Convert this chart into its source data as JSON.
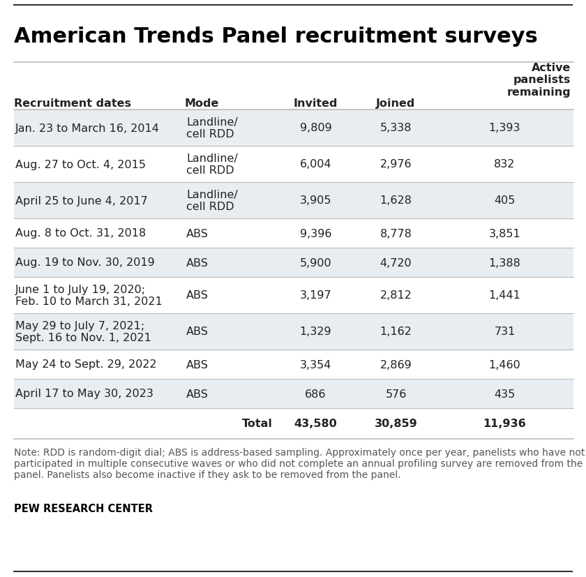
{
  "title": "American Trends Panel recruitment surveys",
  "columns": [
    "Recruitment dates",
    "Mode",
    "Invited",
    "Joined",
    "Active\npanelists\nremaining"
  ],
  "col_aligns": [
    "left",
    "left",
    "center",
    "center",
    "center"
  ],
  "col_header_aligns": [
    "left",
    "left",
    "center",
    "center",
    "right"
  ],
  "rows": [
    [
      "Jan. 23 to March 16, 2014",
      "Landline/\ncell RDD",
      "9,809",
      "5,338",
      "1,393"
    ],
    [
      "Aug. 27 to Oct. 4, 2015",
      "Landline/\ncell RDD",
      "6,004",
      "2,976",
      "832"
    ],
    [
      "April 25 to June 4, 2017",
      "Landline/\ncell RDD",
      "3,905",
      "1,628",
      "405"
    ],
    [
      "Aug. 8 to Oct. 31, 2018",
      "ABS",
      "9,396",
      "8,778",
      "3,851"
    ],
    [
      "Aug. 19 to Nov. 30, 2019",
      "ABS",
      "5,900",
      "4,720",
      "1,388"
    ],
    [
      "June 1 to July 19, 2020;\nFeb. 10 to March 31, 2021",
      "ABS",
      "3,197",
      "2,812",
      "1,441"
    ],
    [
      "May 29 to July 7, 2021;\nSept. 16 to Nov. 1, 2021",
      "ABS",
      "1,329",
      "1,162",
      "731"
    ],
    [
      "May 24 to Sept. 29, 2022",
      "ABS",
      "3,354",
      "2,869",
      "1,460"
    ],
    [
      "April 17 to May 30, 2023",
      "ABS",
      "686",
      "576",
      "435"
    ]
  ],
  "total_row": [
    "",
    "Total",
    "43,580",
    "30,859",
    "11,936"
  ],
  "note": "Note: RDD is random-digit dial; ABS is address-based sampling. Approximately once per year, panelists who have not participated in multiple consecutive waves or who did not complete an annual profiling survey are removed from the panel. Panelists also become inactive if they ask to be removed from the panel.",
  "source": "PEW RESEARCH CENTER",
  "bg_color_light": "#e8edf2",
  "bg_color_white": "#ffffff",
  "text_color": "#222222",
  "title_color": "#000000",
  "note_color": "#555555",
  "source_color": "#000000",
  "line_color": "#bbbbbb",
  "title_fontsize": 22,
  "header_fontsize": 11.5,
  "cell_fontsize": 11.5,
  "note_fontsize": 10,
  "source_fontsize": 10.5
}
